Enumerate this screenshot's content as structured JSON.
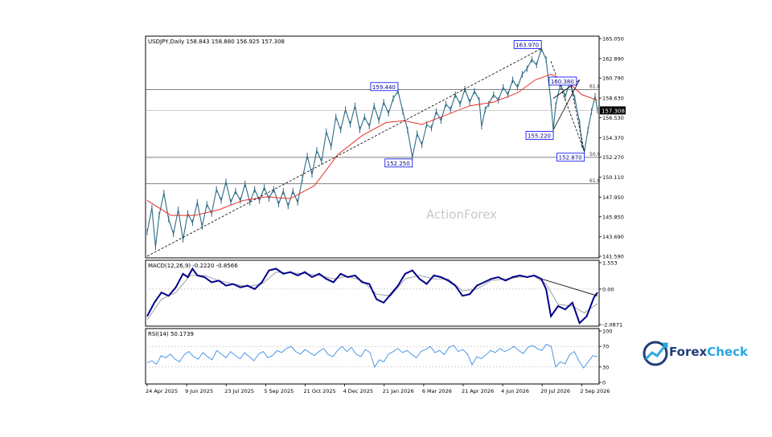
{
  "chart_data": [
    {
      "type": "line",
      "name": "price",
      "header": "USDJPY,Daily  158.843 158.880 156.925 157.308",
      "watermark": "ActionForex",
      "y_ticks": [
        "165.050",
        "162.890",
        "160.790",
        "158.630",
        "156.530",
        "154.370",
        "152.270",
        "150.110",
        "147.950",
        "145.850",
        "143.690",
        "141.590"
      ],
      "ylim": [
        141.59,
        165.05
      ],
      "current_price": "157.308",
      "x_ticks": [
        "24 Apr 2025",
        "9 Jun 2025",
        "23 Jul 2025",
        "5 Sep 2025",
        "21 Oct 2025",
        "4 Dec 2025",
        "21 Jan 2026",
        "6 Mar 2026",
        "21 Apr 2026",
        "4 Jun 2026",
        "20 Jul 2026",
        "2 Sep 2026"
      ],
      "price_path": [
        [
          0,
          144.2
        ],
        [
          4,
          146.8
        ],
        [
          7,
          142.6
        ],
        [
          10,
          146.0
        ],
        [
          14,
          148.4
        ],
        [
          18,
          145.6
        ],
        [
          22,
          144.0
        ],
        [
          26,
          146.6
        ],
        [
          30,
          143.4
        ],
        [
          34,
          146.2
        ],
        [
          38,
          145.2
        ],
        [
          42,
          147.4
        ],
        [
          46,
          144.8
        ],
        [
          50,
          147.2
        ],
        [
          54,
          146.2
        ],
        [
          58,
          148.8
        ],
        [
          62,
          147.6
        ],
        [
          66,
          149.6
        ],
        [
          70,
          147.4
        ],
        [
          74,
          148.6
        ],
        [
          78,
          147.6
        ],
        [
          82,
          149.4
        ],
        [
          86,
          147.4
        ],
        [
          90,
          148.8
        ],
        [
          94,
          147.6
        ],
        [
          98,
          149.0
        ],
        [
          102,
          147.8
        ],
        [
          106,
          148.8
        ],
        [
          110,
          147.2
        ],
        [
          114,
          148.6
        ],
        [
          118,
          147.0
        ],
        [
          122,
          148.6
        ],
        [
          126,
          147.4
        ],
        [
          130,
          150.0
        ],
        [
          134,
          152.4
        ],
        [
          138,
          150.4
        ],
        [
          142,
          153.0
        ],
        [
          146,
          151.8
        ],
        [
          150,
          155.0
        ],
        [
          154,
          153.4
        ],
        [
          158,
          156.6
        ],
        [
          162,
          155.2
        ],
        [
          166,
          157.4
        ],
        [
          170,
          155.8
        ],
        [
          174,
          157.8
        ],
        [
          178,
          155.2
        ],
        [
          182,
          156.6
        ],
        [
          186,
          155.6
        ],
        [
          190,
          157.8
        ],
        [
          194,
          156.2
        ],
        [
          198,
          158.2
        ],
        [
          202,
          157.0
        ],
        [
          206,
          158.6
        ],
        [
          210,
          159.4
        ],
        [
          214,
          157.2
        ],
        [
          218,
          155.2
        ],
        [
          222,
          152.25
        ],
        [
          226,
          154.8
        ],
        [
          230,
          153.6
        ],
        [
          234,
          155.8
        ],
        [
          238,
          155.4
        ],
        [
          242,
          157.2
        ],
        [
          246,
          156.2
        ],
        [
          250,
          158.0
        ],
        [
          254,
          157.4
        ],
        [
          258,
          159.0
        ],
        [
          262,
          158.0
        ],
        [
          266,
          159.6
        ],
        [
          270,
          158.2
        ],
        [
          274,
          159.4
        ],
        [
          278,
          158.4
        ],
        [
          280,
          155.6
        ],
        [
          283,
          157.4
        ],
        [
          286,
          158.0
        ],
        [
          290,
          159.0
        ],
        [
          294,
          158.4
        ],
        [
          298,
          159.8
        ],
        [
          302,
          159.0
        ],
        [
          306,
          160.6
        ],
        [
          310,
          159.8
        ],
        [
          314,
          161.2
        ],
        [
          318,
          161.8
        ],
        [
          322,
          162.8
        ],
        [
          326,
          162.2
        ],
        [
          330,
          163.97
        ],
        [
          334,
          162.8
        ],
        [
          338,
          158.2
        ],
        [
          340,
          155.22
        ],
        [
          342,
          157.8
        ],
        [
          346,
          160.2
        ],
        [
          350,
          158.8
        ],
        [
          354,
          160.38
        ],
        [
          358,
          158.6
        ],
        [
          362,
          156.0
        ],
        [
          364,
          153.6
        ],
        [
          366,
          152.87
        ],
        [
          369,
          155.2
        ],
        [
          372,
          157.2
        ],
        [
          375,
          158.843
        ],
        [
          377,
          157.308
        ]
      ],
      "ma_path": [
        [
          0,
          147.6
        ],
        [
          20,
          146.0
        ],
        [
          40,
          146.0
        ],
        [
          60,
          146.6
        ],
        [
          80,
          147.6
        ],
        [
          100,
          148.0
        ],
        [
          120,
          147.8
        ],
        [
          140,
          149.2
        ],
        [
          160,
          152.6
        ],
        [
          180,
          154.6
        ],
        [
          200,
          156.0
        ],
        [
          215,
          156.2
        ],
        [
          230,
          155.8
        ],
        [
          250,
          156.8
        ],
        [
          270,
          157.8
        ],
        [
          290,
          158.2
        ],
        [
          310,
          159.2
        ],
        [
          325,
          160.6
        ],
        [
          338,
          161.2
        ],
        [
          352,
          160.4
        ],
        [
          364,
          159.0
        ],
        [
          377,
          158.4
        ]
      ],
      "level_labels": [
        {
          "text": "163.970",
          "x": 330,
          "y": 163.97
        },
        {
          "text": "159.440",
          "x": 210,
          "y": 159.44
        },
        {
          "text": "160.380",
          "x": 354,
          "y": 160.38
        },
        {
          "text": "155.220",
          "x": 340,
          "y": 155.22
        },
        {
          "text": "152.870",
          "x": 366,
          "y": 152.87
        },
        {
          "text": "152.250",
          "x": 222,
          "y": 152.25
        }
      ],
      "horizontal_lines": [
        {
          "price": 152.25,
          "label": "50.0"
        },
        {
          "price": 149.4,
          "label": "61.8"
        },
        {
          "price": 159.55,
          "label": "61.8"
        }
      ],
      "trend_line": [
        [
          0,
          141.59
        ],
        [
          330,
          163.97
        ]
      ],
      "wedge_lines": [
        [
          [
            340,
            155.22
          ],
          [
            362,
            160.6
          ]
        ],
        [
          [
            340,
            158.6
          ],
          [
            362,
            160.6
          ]
        ]
      ],
      "dashed_projection": [
        [
          [
            338,
            162.6
          ],
          [
            366,
            152.87
          ]
        ],
        [
          [
            366,
            152.87
          ],
          [
            354,
            160.38
          ]
        ]
      ],
      "colors": {
        "price": "#2b6b85",
        "ma": "#e8302a",
        "trend": "#000000",
        "levels": "#000000",
        "label_box": "#0000ff"
      }
    },
    {
      "type": "line",
      "name": "macd",
      "header": "MACD(12,26,9) -0.2220 -0.8566",
      "y_ticks": [
        "1.553",
        "0.00",
        "-2.0871"
      ],
      "ylim": [
        -2.0871,
        1.553
      ],
      "macd_path": [
        [
          0,
          -1.6
        ],
        [
          6,
          -0.8
        ],
        [
          12,
          -0.2
        ],
        [
          18,
          -0.4
        ],
        [
          24,
          0.1
        ],
        [
          30,
          0.9
        ],
        [
          34,
          0.7
        ],
        [
          38,
          1.2
        ],
        [
          42,
          0.8
        ],
        [
          48,
          0.7
        ],
        [
          54,
          0.4
        ],
        [
          60,
          0.5
        ],
        [
          66,
          0.2
        ],
        [
          72,
          0.3
        ],
        [
          78,
          0.1
        ],
        [
          84,
          0.2
        ],
        [
          90,
          0.0
        ],
        [
          96,
          0.4
        ],
        [
          102,
          1.1
        ],
        [
          108,
          1.2
        ],
        [
          114,
          0.9
        ],
        [
          120,
          1.0
        ],
        [
          126,
          0.8
        ],
        [
          132,
          1.0
        ],
        [
          138,
          0.7
        ],
        [
          144,
          0.9
        ],
        [
          150,
          0.6
        ],
        [
          156,
          0.4
        ],
        [
          162,
          0.9
        ],
        [
          168,
          0.7
        ],
        [
          174,
          0.8
        ],
        [
          180,
          0.4
        ],
        [
          186,
          0.3
        ],
        [
          192,
          -0.6
        ],
        [
          198,
          -0.8
        ],
        [
          204,
          -0.3
        ],
        [
          210,
          0.2
        ],
        [
          216,
          0.9
        ],
        [
          222,
          1.1
        ],
        [
          228,
          0.6
        ],
        [
          234,
          0.3
        ],
        [
          240,
          0.8
        ],
        [
          246,
          0.7
        ],
        [
          252,
          0.5
        ],
        [
          258,
          0.2
        ],
        [
          264,
          -0.4
        ],
        [
          270,
          -0.3
        ],
        [
          276,
          0.2
        ],
        [
          282,
          0.4
        ],
        [
          288,
          0.6
        ],
        [
          294,
          0.7
        ],
        [
          300,
          0.5
        ],
        [
          306,
          0.7
        ],
        [
          312,
          0.8
        ],
        [
          318,
          0.7
        ],
        [
          324,
          0.8
        ],
        [
          330,
          0.6
        ],
        [
          334,
          0.0
        ],
        [
          338,
          -1.6
        ],
        [
          344,
          -1.0
        ],
        [
          350,
          -1.2
        ],
        [
          356,
          -0.8
        ],
        [
          362,
          -2.0
        ],
        [
          368,
          -1.6
        ],
        [
          374,
          -0.5
        ],
        [
          377,
          -0.2
        ]
      ],
      "signal_path": [
        [
          0,
          -1.8
        ],
        [
          12,
          -0.6
        ],
        [
          24,
          -0.2
        ],
        [
          36,
          0.8
        ],
        [
          48,
          0.8
        ],
        [
          60,
          0.5
        ],
        [
          72,
          0.3
        ],
        [
          84,
          0.15
        ],
        [
          96,
          0.3
        ],
        [
          108,
          1.0
        ],
        [
          120,
          0.95
        ],
        [
          132,
          0.9
        ],
        [
          144,
          0.8
        ],
        [
          156,
          0.6
        ],
        [
          168,
          0.75
        ],
        [
          180,
          0.5
        ],
        [
          192,
          -0.3
        ],
        [
          204,
          -0.4
        ],
        [
          216,
          0.6
        ],
        [
          228,
          0.8
        ],
        [
          240,
          0.6
        ],
        [
          252,
          0.6
        ],
        [
          264,
          -0.1
        ],
        [
          276,
          0.0
        ],
        [
          288,
          0.5
        ],
        [
          300,
          0.6
        ],
        [
          312,
          0.7
        ],
        [
          324,
          0.75
        ],
        [
          334,
          0.3
        ],
        [
          344,
          -0.9
        ],
        [
          356,
          -1.0
        ],
        [
          366,
          -1.4
        ],
        [
          377,
          -0.86
        ]
      ],
      "trend_line": [
        [
          330,
          0.6
        ],
        [
          377,
          -0.4
        ]
      ],
      "colors": {
        "macd": "#00008b",
        "signal": "#a0a0a0"
      }
    },
    {
      "type": "line",
      "name": "rsi",
      "header": "RSI(14) 50.1739",
      "y_ticks": [
        "100",
        "70",
        "30",
        "0"
      ],
      "ylim": [
        0,
        100
      ],
      "rsi_values": [
        38,
        42,
        35,
        52,
        48,
        55,
        45,
        40,
        54,
        60,
        50,
        45,
        58,
        50,
        44,
        62,
        55,
        48,
        60,
        52,
        46,
        58,
        50,
        42,
        55,
        60,
        48,
        52,
        62,
        58,
        66,
        70,
        60,
        55,
        64,
        58,
        52,
        60,
        66,
        54,
        50,
        62,
        70,
        60,
        68,
        55,
        50,
        64,
        58,
        30,
        44,
        40,
        55,
        60,
        66,
        58,
        62,
        54,
        48,
        60,
        64,
        70,
        58,
        62,
        54,
        68,
        72,
        60,
        64,
        55,
        34,
        50,
        46,
        54,
        62,
        58,
        66,
        60,
        64,
        70,
        62,
        56,
        68,
        72,
        66,
        62,
        74,
        70,
        30,
        40,
        36,
        54,
        60,
        42,
        28,
        40,
        52,
        50
      ],
      "colors": {
        "rsi": "#3a8ee6"
      }
    }
  ],
  "logo": {
    "text_a": "Forex",
    "text_b": "Check",
    "accent": "#2aa7df",
    "primary": "#1d3f78"
  }
}
